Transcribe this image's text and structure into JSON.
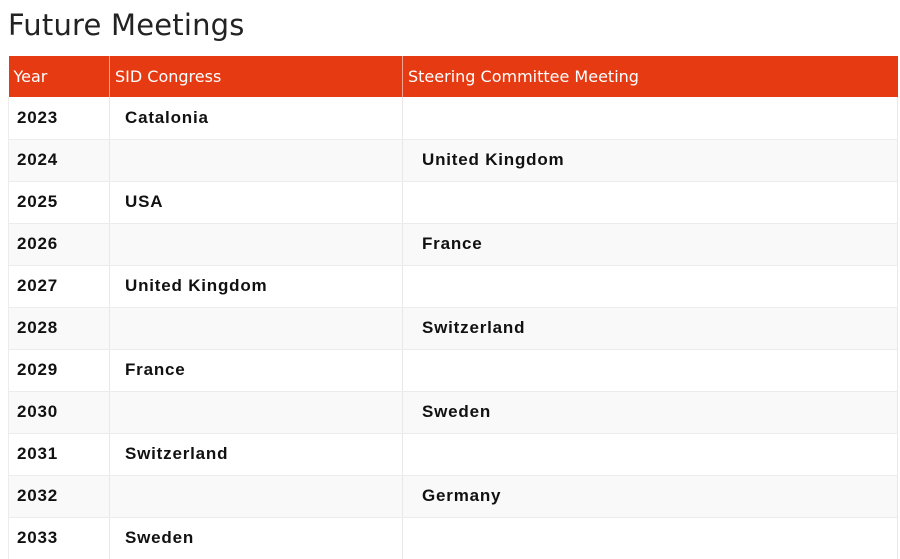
{
  "page": {
    "title": "Future Meetings"
  },
  "table": {
    "headers": [
      "Year",
      "SID Congress",
      "Steering Committee Meeting"
    ],
    "rows": [
      {
        "year": "2023",
        "sid_congress": "Catalonia",
        "steering_committee": ""
      },
      {
        "year": "2024",
        "sid_congress": "",
        "steering_committee": "United Kingdom"
      },
      {
        "year": "2025",
        "sid_congress": "USA",
        "steering_committee": ""
      },
      {
        "year": "2026",
        "sid_congress": "",
        "steering_committee": "France"
      },
      {
        "year": "2027",
        "sid_congress": "United Kingdom",
        "steering_committee": ""
      },
      {
        "year": "2028",
        "sid_congress": "",
        "steering_committee": "Switzerland"
      },
      {
        "year": "2029",
        "sid_congress": "France",
        "steering_committee": ""
      },
      {
        "year": "2030",
        "sid_congress": "",
        "steering_committee": "Sweden"
      },
      {
        "year": "2031",
        "sid_congress": "Switzerland",
        "steering_committee": ""
      },
      {
        "year": "2032",
        "sid_congress": "",
        "steering_committee": "Germany"
      },
      {
        "year": "2033",
        "sid_congress": "Sweden",
        "steering_committee": ""
      }
    ]
  },
  "colors": {
    "header_background": "#e63a12",
    "header_text": "#ffffff",
    "row_alt_background": "#f9f9f9"
  }
}
